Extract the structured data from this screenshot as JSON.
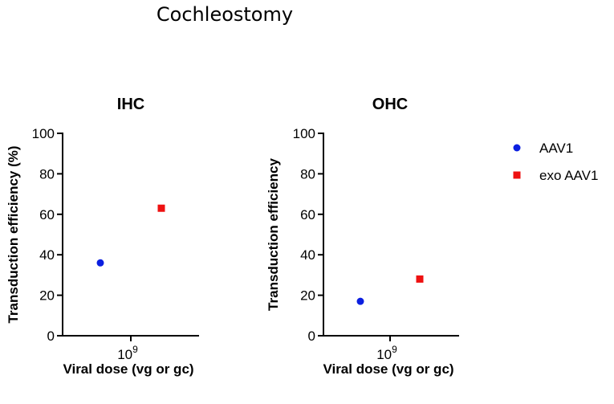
{
  "figure_title": "Cochleostomy",
  "legend": {
    "entries": [
      {
        "name": "AAV1",
        "marker": "circle",
        "color": "#0b1fe0"
      },
      {
        "name": "exo AAV1",
        "marker": "square",
        "color": "#ee1111"
      }
    ]
  },
  "chart_data": [
    {
      "type": "scatter",
      "title": "IHC",
      "xlabel": "Viral dose (vg or gc)",
      "ylabel": "Transduction efficiency (%)",
      "ylim": [
        0,
        100
      ],
      "yticks": [
        0,
        20,
        40,
        60,
        80,
        100
      ],
      "ytick_labels": [
        "0",
        "20",
        "40",
        "60",
        "80",
        "100"
      ],
      "xtick_label": {
        "base": "10",
        "exp": "9"
      },
      "series": [
        {
          "name": "AAV1",
          "marker": "circle",
          "color": "#0b1fe0",
          "x_offset": -1,
          "values": [
            36
          ]
        },
        {
          "name": "exo AAV1",
          "marker": "square",
          "color": "#ee1111",
          "x_offset": 1,
          "values": [
            63
          ]
        }
      ]
    },
    {
      "type": "scatter",
      "title": "OHC",
      "xlabel": "Viral dose (vg or gc)",
      "ylabel": "Transduction efficiency",
      "ylim": [
        0,
        100
      ],
      "yticks": [
        0,
        20,
        40,
        60,
        80,
        100
      ],
      "ytick_labels": [
        "0",
        "20",
        "40",
        "60",
        "80",
        "100"
      ],
      "xtick_label": {
        "base": "10",
        "exp": "9"
      },
      "series": [
        {
          "name": "AAV1",
          "marker": "circle",
          "color": "#0b1fe0",
          "x_offset": -1,
          "values": [
            17
          ]
        },
        {
          "name": "exo AAV1",
          "marker": "square",
          "color": "#ee1111",
          "x_offset": 1,
          "values": [
            28
          ]
        }
      ]
    }
  ]
}
